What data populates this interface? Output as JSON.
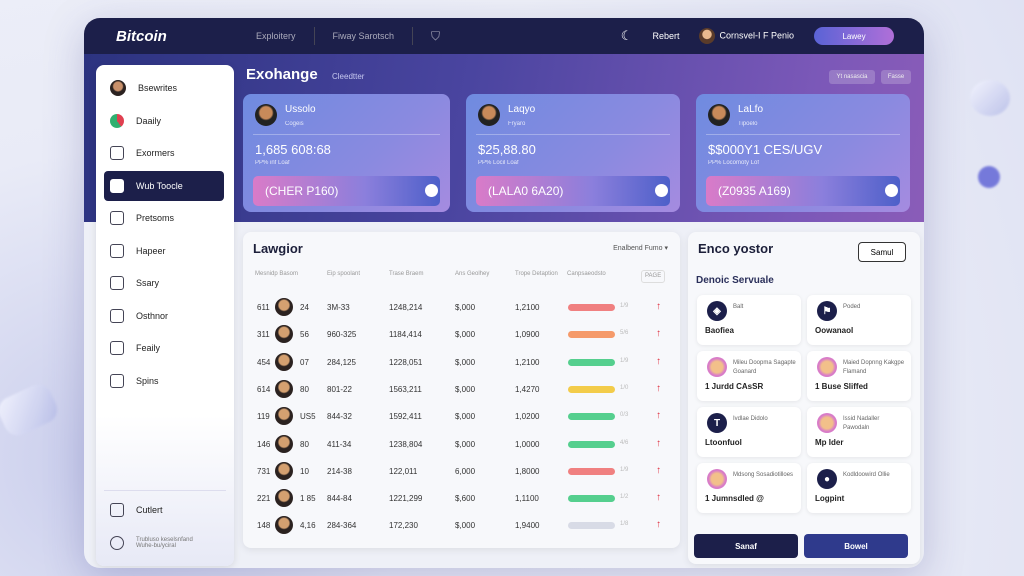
{
  "header": {
    "brand": "Bitcoin",
    "nav": [
      "Exploitery",
      "Fiway Sarotsch"
    ],
    "right_link": "Rebert",
    "user": "Cornsvel-I F Penio",
    "button": "Lawey"
  },
  "sidebar": {
    "items": [
      "Bsewrites",
      "Daaily",
      "Exormers",
      "Wub Toocle",
      "Pretsoms",
      "Hapeer",
      "Ssary",
      "Osthnor",
      "Feaily",
      "Spins"
    ],
    "active": 3,
    "bottom": "Cutlert",
    "footer": "Trubluso keselsnfand Wuhe-bu/yciral"
  },
  "main": {
    "title": "Exohange",
    "subtitle": "Cleedtter",
    "top_buttons": [
      "Yt nasascia",
      "Fasse"
    ]
  },
  "cards": [
    {
      "name": "Ussolo",
      "sub": "Cogeis",
      "value": "1,685 608:68",
      "caption": "PP% inf Loaf",
      "bar": "(CHER P160)"
    },
    {
      "name": "Laqyo",
      "sub": "Fryaro",
      "value": "$25,88.80",
      "caption": "PP% Locil Loaf",
      "bar": "(LALA0 6A20)"
    },
    {
      "name": "LaLfo",
      "sub": "Tipoelo",
      "value": "$$000Y1 CES/UGV",
      "caption": "PP% Locomoty Lof",
      "bar": "(Z0935 A169)"
    }
  ],
  "table": {
    "title": "Lawgior",
    "filter": "Enalbend Fumo",
    "headers": [
      "Mesnidp Basom",
      "Eip spoolant",
      "Trase Braem",
      "Ans Geolhey",
      "Trope Detaption",
      "Canpsaeodsto"
    ],
    "tag": "PAGE",
    "rows": [
      [
        "611",
        "24",
        "3M-33",
        "1248,214",
        "$,000",
        "1,2100",
        "#f08080",
        "1/9"
      ],
      [
        "311",
        "56",
        "960-325",
        "1184,414",
        "$,000",
        "1,0900",
        "#f59a6a",
        "5/6"
      ],
      [
        "454",
        "07",
        "284,125",
        "1228,051",
        "$,000",
        "1,2100",
        "#55cf8e",
        "1/9"
      ],
      [
        "614",
        "80",
        "801-22",
        "1563,211",
        "$,000",
        "1,4270",
        "#f3cc4a",
        "1/0"
      ],
      [
        "119",
        "US5",
        "844-32",
        "1592,411",
        "$,000",
        "1,0200",
        "#55cf8e",
        "0/3"
      ],
      [
        "146",
        "80",
        "411-34",
        "1238,804",
        "$,000",
        "1,0000",
        "#55cf8e",
        "4/6"
      ],
      [
        "731",
        "10",
        "214-38",
        "122,011",
        "6,000",
        "1,8000",
        "#f08080",
        "1/9"
      ],
      [
        "221",
        "1 85",
        "844-84",
        "1221,299",
        "$,600",
        "1,1100",
        "#55cf8e",
        "1/2"
      ],
      [
        "148",
        "4,16",
        "284-364",
        "172,230",
        "$,000",
        "1,9400",
        "#d8dbe6",
        "1/8"
      ]
    ]
  },
  "right": {
    "title": "Enco yostor",
    "button": "Samul",
    "section": "Denoic Servuale",
    "cards": [
      {
        "icon": "gem",
        "line1": "Balt",
        "line2": "Baofiea"
      },
      {
        "icon": "runner",
        "line1": "Poded",
        "line2": "Oowanaol"
      },
      {
        "icon": "avatar",
        "line1": "Mileu Doopma Sagapte Goanard",
        "line2": "1 Jurdd CAsSR"
      },
      {
        "icon": "avatar",
        "line1": "Maied Dopnng Kakgpe Flamand",
        "line2": "1 Buse Sliffed"
      },
      {
        "icon": "T",
        "line1": "Ivdlae Didolo",
        "line2": "Ltoonfuol"
      },
      {
        "icon": "avatar",
        "line1": "Issid Nadaller Pawodaln",
        "line2": "Mp Ider"
      },
      {
        "icon": "avatar",
        "line1": "Mdsong Sosadiotilloes",
        "line2": "1 Jumnsdled @"
      },
      {
        "icon": "orb",
        "line1": "Kodldoowird Ollie",
        "line2": "Logpint"
      }
    ],
    "buttons": [
      "Sanaf",
      "Bowel"
    ]
  }
}
